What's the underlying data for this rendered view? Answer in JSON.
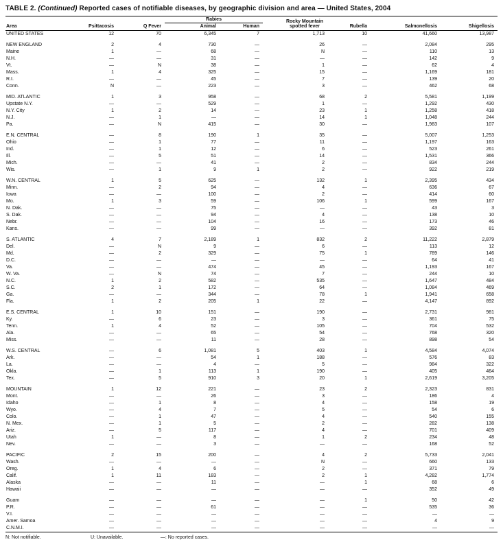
{
  "page": {
    "title_label": "TABLE 2.",
    "title_continued": "(Continued)",
    "title_text": "Reported cases of notifiable diseases, by geographic division and area — United States, 2004"
  },
  "table": {
    "headers": {
      "area": "Area",
      "psittacosis": "Psittacosis",
      "q_fever": "Q Fever",
      "rabies_group": "Rabies",
      "rabies_animal": "Animal",
      "rabies_human": "Human",
      "rmsf": "Rocky Mountain spotted fever",
      "rubella": "Rubella",
      "salmonellosis": "Salmonellosis",
      "shigellosis": "Shigellosis"
    },
    "groups": [
      {
        "rows": [
          {
            "area": "UNITED STATES",
            "values": [
              "12",
              "70",
              "6,345",
              "7",
              "1,713",
              "10",
              "41,660",
              "13,987"
            ]
          }
        ]
      },
      {
        "rows": [
          {
            "area": "NEW ENGLAND",
            "values": [
              "2",
              "4",
              "730",
              "—",
              "26",
              "—",
              "2,084",
              "295"
            ]
          },
          {
            "area": "Maine",
            "values": [
              "1",
              "—",
              "68",
              "—",
              "N",
              "—",
              "110",
              "13"
            ]
          },
          {
            "area": "N.H.",
            "values": [
              "—",
              "—",
              "31",
              "—",
              "—",
              "—",
              "142",
              "9"
            ]
          },
          {
            "area": "Vt.",
            "values": [
              "—",
              "N",
              "38",
              "—",
              "1",
              "—",
              "62",
              "4"
            ]
          },
          {
            "area": "Mass.",
            "values": [
              "1",
              "4",
              "325",
              "—",
              "15",
              "—",
              "1,169",
              "181"
            ]
          },
          {
            "area": "R.I.",
            "values": [
              "—",
              "—",
              "45",
              "—",
              "7",
              "—",
              "139",
              "20"
            ]
          },
          {
            "area": "Conn.",
            "values": [
              "N",
              "—",
              "223",
              "—",
              "3",
              "—",
              "462",
              "68"
            ]
          }
        ]
      },
      {
        "rows": [
          {
            "area": "MID. ATLANTIC",
            "values": [
              "1",
              "3",
              "958",
              "—",
              "68",
              "2",
              "5,581",
              "1,199"
            ]
          },
          {
            "area": "Upstate N.Y.",
            "values": [
              "—",
              "—",
              "529",
              "—",
              "1",
              "—",
              "1,292",
              "430"
            ]
          },
          {
            "area": "N.Y. City",
            "values": [
              "1",
              "2",
              "14",
              "—",
              "23",
              "1",
              "1,258",
              "418"
            ]
          },
          {
            "area": "N.J.",
            "values": [
              "—",
              "1",
              "—",
              "—",
              "14",
              "1",
              "1,048",
              "244"
            ]
          },
          {
            "area": "Pa.",
            "values": [
              "—",
              "N",
              "415",
              "—",
              "30",
              "—",
              "1,983",
              "107"
            ]
          }
        ]
      },
      {
        "rows": [
          {
            "area": "E.N. CENTRAL",
            "values": [
              "—",
              "8",
              "190",
              "1",
              "35",
              "—",
              "5,007",
              "1,253"
            ]
          },
          {
            "area": "Ohio",
            "values": [
              "—",
              "1",
              "77",
              "—",
              "11",
              "—",
              "1,197",
              "163"
            ]
          },
          {
            "area": "Ind.",
            "values": [
              "—",
              "1",
              "12",
              "—",
              "6",
              "—",
              "523",
              "261"
            ]
          },
          {
            "area": "Ill.",
            "values": [
              "—",
              "5",
              "51",
              "—",
              "14",
              "—",
              "1,531",
              "366"
            ]
          },
          {
            "area": "Mich.",
            "values": [
              "—",
              "—",
              "41",
              "—",
              "2",
              "—",
              "834",
              "244"
            ]
          },
          {
            "area": "Wis.",
            "values": [
              "—",
              "1",
              "9",
              "1",
              "2",
              "—",
              "922",
              "219"
            ]
          }
        ]
      },
      {
        "rows": [
          {
            "area": "W.N. CENTRAL",
            "values": [
              "1",
              "5",
              "625",
              "—",
              "132",
              "1",
              "2,395",
              "434"
            ]
          },
          {
            "area": "Minn.",
            "values": [
              "—",
              "2",
              "94",
              "—",
              "4",
              "—",
              "636",
              "67"
            ]
          },
          {
            "area": "Iowa",
            "values": [
              "—",
              "—",
              "100",
              "—",
              "2",
              "—",
              "414",
              "60"
            ]
          },
          {
            "area": "Mo.",
            "values": [
              "1",
              "3",
              "59",
              "—",
              "106",
              "1",
              "599",
              "167"
            ]
          },
          {
            "area": "N. Dak.",
            "values": [
              "—",
              "—",
              "75",
              "—",
              "—",
              "—",
              "43",
              "3"
            ]
          },
          {
            "area": "S. Dak.",
            "values": [
              "—",
              "—",
              "94",
              "—",
              "4",
              "—",
              "138",
              "10"
            ]
          },
          {
            "area": "Nebr.",
            "values": [
              "—",
              "—",
              "104",
              "—",
              "16",
              "—",
              "173",
              "46"
            ]
          },
          {
            "area": "Kans.",
            "values": [
              "—",
              "—",
              "99",
              "—",
              "—",
              "—",
              "392",
              "81"
            ]
          }
        ]
      },
      {
        "rows": [
          {
            "area": "S. ATLANTIC",
            "values": [
              "4",
              "7",
              "2,189",
              "1",
              "832",
              "2",
              "11,222",
              "2,879"
            ]
          },
          {
            "area": "Del.",
            "values": [
              "—",
              "N",
              "9",
              "—",
              "6",
              "—",
              "113",
              "12"
            ]
          },
          {
            "area": "Md.",
            "values": [
              "—",
              "2",
              "329",
              "—",
              "75",
              "1",
              "789",
              "146"
            ]
          },
          {
            "area": "D.C.",
            "values": [
              "—",
              "—",
              "—",
              "—",
              "—",
              "—",
              "64",
              "41"
            ]
          },
          {
            "area": "Va.",
            "values": [
              "—",
              "—",
              "474",
              "—",
              "45",
              "—",
              "1,193",
              "167"
            ]
          },
          {
            "area": "W. Va.",
            "values": [
              "—",
              "N",
              "74",
              "—",
              "7",
              "—",
              "244",
              "10"
            ]
          },
          {
            "area": "N.C.",
            "values": [
              "1",
              "2",
              "582",
              "—",
              "535",
              "—",
              "1,647",
              "484"
            ]
          },
          {
            "area": "S.C.",
            "values": [
              "2",
              "1",
              "172",
              "—",
              "64",
              "—",
              "1,084",
              "469"
            ]
          },
          {
            "area": "Ga.",
            "values": [
              "—",
              "—",
              "344",
              "—",
              "78",
              "1",
              "1,941",
              "658"
            ]
          },
          {
            "area": "Fla.",
            "values": [
              "1",
              "2",
              "205",
              "1",
              "22",
              "—",
              "4,147",
              "892"
            ]
          }
        ]
      },
      {
        "rows": [
          {
            "area": "E.S. CENTRAL",
            "values": [
              "1",
              "10",
              "151",
              "—",
              "190",
              "—",
              "2,731",
              "981"
            ]
          },
          {
            "area": "Ky.",
            "values": [
              "—",
              "6",
              "23",
              "—",
              "3",
              "—",
              "361",
              "75"
            ]
          },
          {
            "area": "Tenn.",
            "values": [
              "1",
              "4",
              "52",
              "—",
              "105",
              "—",
              "704",
              "532"
            ]
          },
          {
            "area": "Ala.",
            "values": [
              "—",
              "—",
              "65",
              "—",
              "54",
              "—",
              "768",
              "320"
            ]
          },
          {
            "area": "Miss.",
            "values": [
              "—",
              "—",
              "11",
              "—",
              "28",
              "—",
              "898",
              "54"
            ]
          }
        ]
      },
      {
        "rows": [
          {
            "area": "W.S. CENTRAL",
            "values": [
              "—",
              "6",
              "1,081",
              "5",
              "403",
              "1",
              "4,584",
              "4,074"
            ]
          },
          {
            "area": "Ark.",
            "values": [
              "—",
              "—",
              "54",
              "1",
              "188",
              "—",
              "576",
              "83"
            ]
          },
          {
            "area": "La.",
            "values": [
              "—",
              "—",
              "4",
              "—",
              "5",
              "—",
              "984",
              "322"
            ]
          },
          {
            "area": "Okla.",
            "values": [
              "—",
              "1",
              "113",
              "1",
              "190",
              "—",
              "405",
              "464"
            ]
          },
          {
            "area": "Tex.",
            "values": [
              "—",
              "5",
              "910",
              "3",
              "20",
              "1",
              "2,619",
              "3,205"
            ]
          }
        ]
      },
      {
        "rows": [
          {
            "area": "MOUNTAIN",
            "values": [
              "1",
              "12",
              "221",
              "—",
              "23",
              "2",
              "2,323",
              "831"
            ]
          },
          {
            "area": "Mont.",
            "values": [
              "—",
              "—",
              "26",
              "—",
              "3",
              "—",
              "186",
              "4"
            ]
          },
          {
            "area": "Idaho",
            "values": [
              "—",
              "1",
              "8",
              "—",
              "4",
              "—",
              "158",
              "19"
            ]
          },
          {
            "area": "Wyo.",
            "values": [
              "—",
              "4",
              "7",
              "—",
              "5",
              "—",
              "54",
              "6"
            ]
          },
          {
            "area": "Colo.",
            "values": [
              "—",
              "1",
              "47",
              "—",
              "4",
              "—",
              "540",
              "155"
            ]
          },
          {
            "area": "N. Mex.",
            "values": [
              "—",
              "1",
              "5",
              "—",
              "2",
              "—",
              "282",
              "138"
            ]
          },
          {
            "area": "Ariz.",
            "values": [
              "—",
              "5",
              "117",
              "—",
              "4",
              "—",
              "701",
              "409"
            ]
          },
          {
            "area": "Utah",
            "values": [
              "1",
              "—",
              "8",
              "—",
              "1",
              "2",
              "234",
              "48"
            ]
          },
          {
            "area": "Nev.",
            "values": [
              "—",
              "—",
              "3",
              "—",
              "—",
              "—",
              "168",
              "52"
            ]
          }
        ]
      },
      {
        "rows": [
          {
            "area": "PACIFIC",
            "values": [
              "2",
              "15",
              "200",
              "—",
              "4",
              "2",
              "5,733",
              "2,041"
            ]
          },
          {
            "area": "Wash.",
            "values": [
              "—",
              "—",
              "—",
              "—",
              "N",
              "—",
              "660",
              "133"
            ]
          },
          {
            "area": "Oreg.",
            "values": [
              "1",
              "4",
              "6",
              "—",
              "2",
              "—",
              "371",
              "79"
            ]
          },
          {
            "area": "Calif.",
            "values": [
              "1",
              "11",
              "183",
              "—",
              "2",
              "1",
              "4,282",
              "1,774"
            ]
          },
          {
            "area": "Alaska",
            "values": [
              "—",
              "—",
              "11",
              "—",
              "—",
              "1",
              "68",
              "6"
            ]
          },
          {
            "area": "Hawaii",
            "values": [
              "—",
              "—",
              "—",
              "—",
              "—",
              "—",
              "352",
              "49"
            ]
          }
        ]
      },
      {
        "rows": [
          {
            "area": "Guam",
            "values": [
              "—",
              "—",
              "—",
              "—",
              "—",
              "1",
              "50",
              "42"
            ]
          },
          {
            "area": "P.R.",
            "values": [
              "—",
              "—",
              "61",
              "—",
              "—",
              "—",
              "535",
              "36"
            ]
          },
          {
            "area": "V.I.",
            "values": [
              "—",
              "—",
              "—",
              "—",
              "—",
              "—",
              "—",
              "—"
            ]
          },
          {
            "area": "Amer. Samoa",
            "values": [
              "—",
              "—",
              "—",
              "—",
              "—",
              "—",
              "4",
              "9"
            ]
          },
          {
            "area": "C.N.M.I.",
            "values": [
              "—",
              "—",
              "—",
              "—",
              "—",
              "—",
              "—",
              "—"
            ]
          }
        ]
      }
    ]
  },
  "footnotes": {
    "n": "N: Not notifiable.",
    "u": "U: Unavailable.",
    "dash": "—: No reported cases."
  }
}
